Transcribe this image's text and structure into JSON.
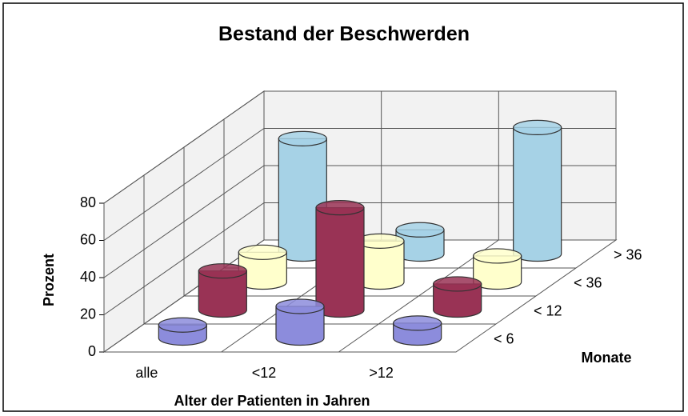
{
  "chart_data": {
    "type": "bar3d",
    "title": "Bestand der Beschwerden",
    "ylabel": "Prozent",
    "xlabel": "Alter der Patienten in Jahren",
    "zlabel": "Monate",
    "categories": [
      "alle",
      "<12",
      ">12"
    ],
    "series": [
      {
        "name": "< 6",
        "color": "#8c8cdc",
        "values": [
          7,
          17,
          8
        ]
      },
      {
        "name": "< 12",
        "color": "#993355",
        "values": [
          21,
          55,
          14
        ]
      },
      {
        "name": "< 36",
        "color": "#ffffcc",
        "values": [
          16,
          22,
          14
        ]
      },
      {
        "name": "> 36",
        "color": "#a6d2e6",
        "values": [
          62,
          13,
          68
        ]
      }
    ],
    "ylim": [
      0,
      80
    ],
    "yticks": [
      0,
      20,
      40,
      60,
      80
    ],
    "grid": true
  }
}
